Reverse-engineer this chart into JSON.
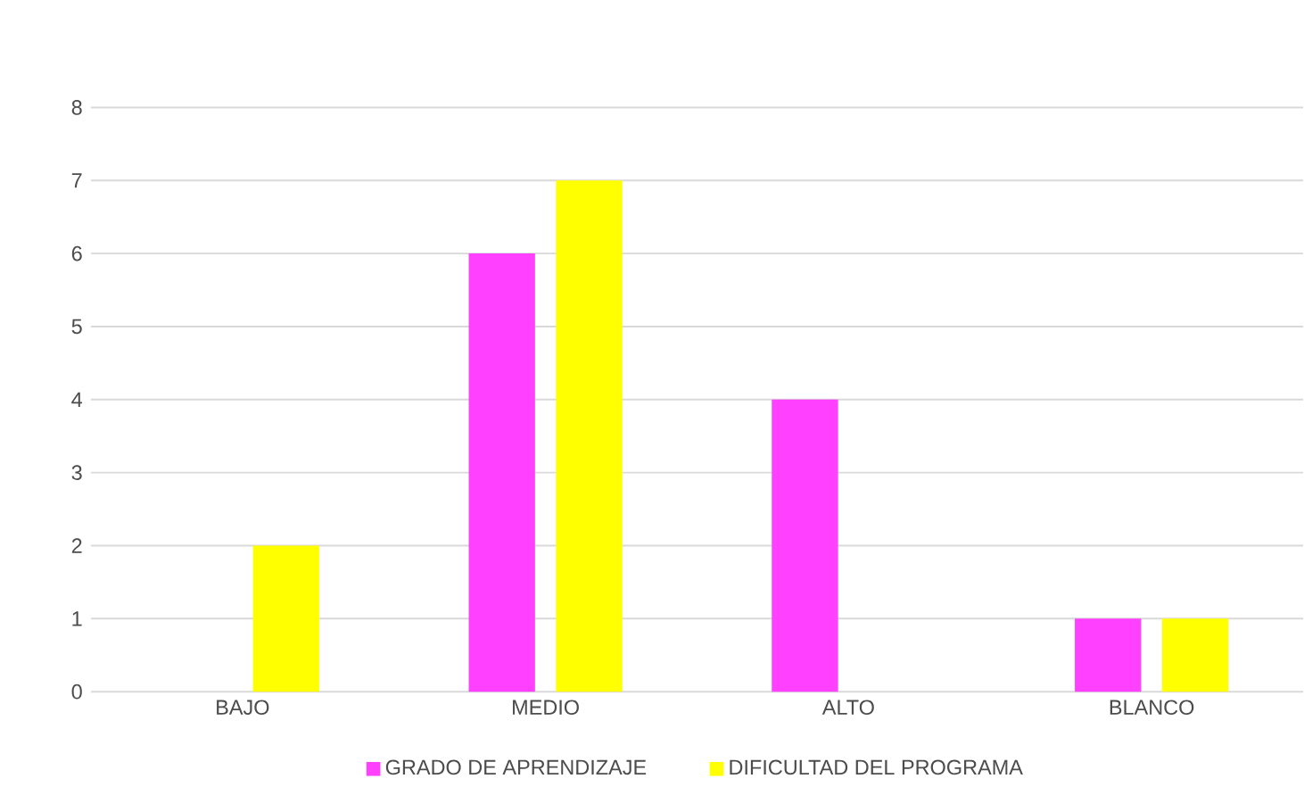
{
  "chart_data": {
    "type": "bar",
    "categories": [
      "BAJO",
      "MEDIO",
      "ALTO",
      "BLANCO"
    ],
    "series": [
      {
        "name": "GRADO DE APRENDIZAJE",
        "color": "#ff40ff",
        "values": [
          0,
          6,
          4,
          1
        ]
      },
      {
        "name": "DIFICULTAD DEL PROGRAMA",
        "color": "#ffff00",
        "values": [
          2,
          7,
          0,
          1
        ]
      }
    ],
    "ylim": [
      0,
      8
    ],
    "yticks": [
      0,
      1,
      2,
      3,
      4,
      5,
      6,
      7,
      8
    ],
    "grid": "y",
    "legend": "bottom"
  }
}
